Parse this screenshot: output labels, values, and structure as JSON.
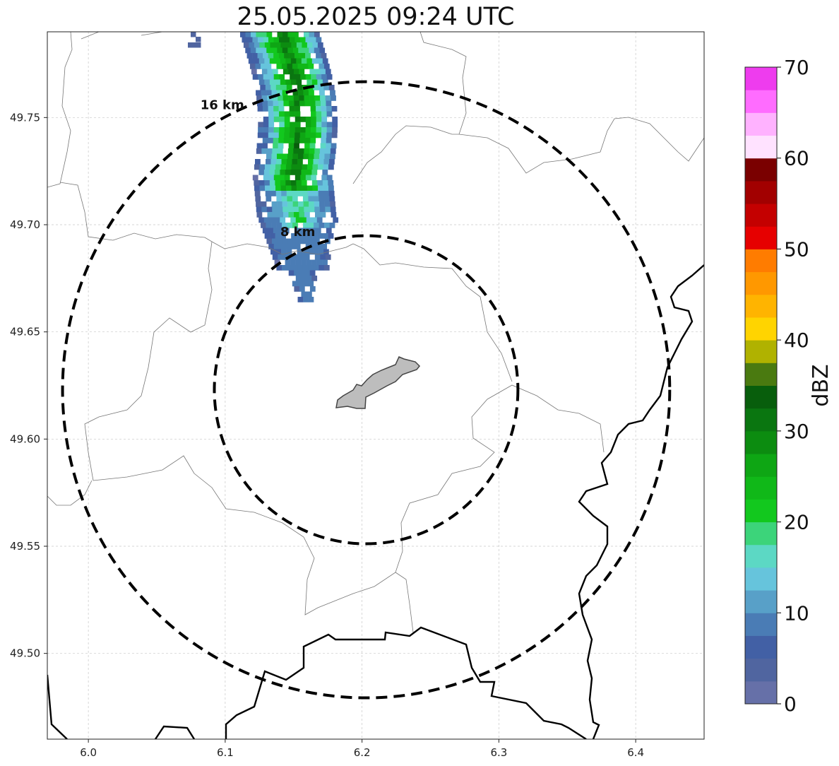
{
  "title": "25.05.2025 09:24 UTC",
  "x_ticks": [
    "6.0",
    "6.1",
    "6.2",
    "6.3",
    "6.4"
  ],
  "x_tick_values": [
    6.0,
    6.1,
    6.2,
    6.3,
    6.4
  ],
  "y_ticks": [
    "49.75",
    "49.70",
    "49.65",
    "49.60",
    "49.55",
    "49.50"
  ],
  "y_tick_values": [
    49.75,
    49.7,
    49.65,
    49.6,
    49.55,
    49.5
  ],
  "extent": {
    "lon": [
      5.97,
      6.45
    ],
    "lat": [
      49.46,
      49.79
    ]
  },
  "center": {
    "lon": 6.203,
    "lat": 49.623
  },
  "rings": [
    {
      "label": "8 km",
      "radius_km": 8
    },
    {
      "label": "16 km",
      "radius_km": 16
    }
  ],
  "colorbar": {
    "label": "dBZ",
    "min": 0,
    "max": 70,
    "ticks": [
      "0",
      "10",
      "20",
      "30",
      "40",
      "50",
      "60",
      "70"
    ],
    "colors": [
      "#6670a8",
      "#5065a0",
      "#4260a5",
      "#4a7cb5",
      "#58a0c8",
      "#66c4dc",
      "#5cd8c4",
      "#3cd47a",
      "#12c81e",
      "#10b818",
      "#0ea614",
      "#0c8c10",
      "#0a7610",
      "#085e0c",
      "#4a7a10",
      "#b0b200",
      "#ffd400",
      "#ffb400",
      "#ff9800",
      "#ff7c00",
      "#e60000",
      "#c40000",
      "#a20000",
      "#7a0000",
      "#ffe2ff",
      "#ffb2ff",
      "#ff6cff",
      "#ee3cee"
    ]
  },
  "colors": {
    "ring": "#000000",
    "border": "#000000",
    "admin": "#777777",
    "city": "#bdbdbd",
    "grid": "#c8c8c8"
  }
}
